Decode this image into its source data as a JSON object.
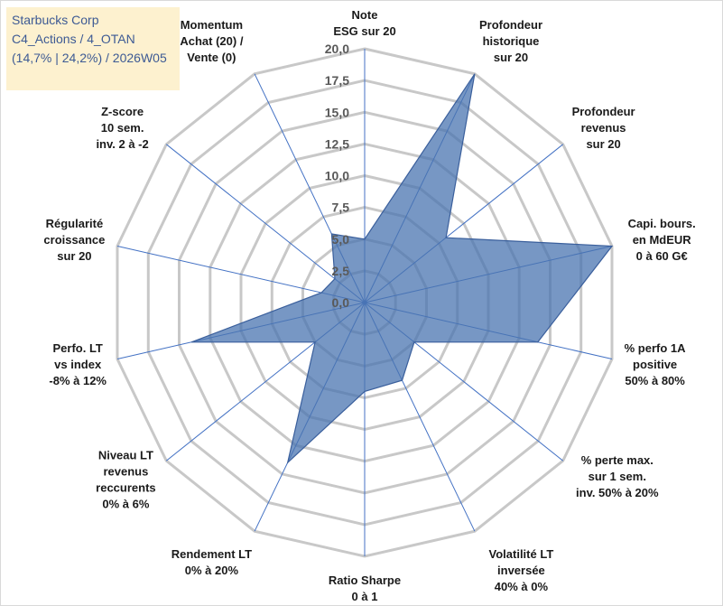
{
  "info_box": {
    "line1": "Starbucks Corp",
    "line2": "C4_Actions / 4_OTAN",
    "line3": "(14,7% | 24,2%) / 2026W05"
  },
  "colors": {
    "grid": "#c8c8c8",
    "spoke": "#4472c4",
    "fill": "#4a74b0",
    "stroke": "#3a5f9c",
    "info_bg": "#fdf1cf",
    "info_text": "#3d5a94"
  },
  "chart_data": {
    "type": "radar",
    "range": [
      0,
      20
    ],
    "ticks": [
      "0,0",
      "2,5",
      "5,0",
      "7,5",
      "10,0",
      "12,5",
      "15,0",
      "17,5",
      "20,0"
    ],
    "axes": [
      {
        "label": [
          "Note",
          "ESG sur 20"
        ],
        "value": 5.0
      },
      {
        "label": [
          "Profondeur",
          "historique",
          "sur 20"
        ],
        "value": 20.0
      },
      {
        "label": [
          "Profondeur",
          "revenus",
          "sur 20"
        ],
        "value": 8.2
      },
      {
        "label": [
          "Capi. bours.",
          "en MdEUR",
          "0 à 60 G€"
        ],
        "value": 20.0
      },
      {
        "label": [
          "% perfo 1A",
          "positive",
          "50% à 80%"
        ],
        "value": 14.0
      },
      {
        "label": [
          "% perte max.",
          "sur 1 sem.",
          "inv. 50% à 20%"
        ],
        "value": 5.0
      },
      {
        "label": [
          "Volatilité LT",
          "inversée",
          "40% à 0%"
        ],
        "value": 6.8
      },
      {
        "label": [
          "Ratio Sharpe",
          "0 à 1"
        ],
        "value": 7.0
      },
      {
        "label": [
          "Rendement LT",
          "0% à 20%"
        ],
        "value": 14.0
      },
      {
        "label": [
          "Niveau LT",
          "revenus",
          "reccurents",
          "0% à 6%"
        ],
        "value": 5.0
      },
      {
        "label": [
          "Perfo. LT",
          "vs index",
          "-8% à 12%"
        ],
        "value": 14.0
      },
      {
        "label": [
          "Régularité",
          "croissance",
          "sur 20"
        ],
        "value": 3.5
      },
      {
        "label": [
          "Z-score",
          "10 sem.",
          "inv. 2 à -2"
        ],
        "value": 3.0
      },
      {
        "label": [
          "Momentum",
          "Achat (20) /",
          "Vente (0)"
        ],
        "value": 6.0
      }
    ]
  }
}
